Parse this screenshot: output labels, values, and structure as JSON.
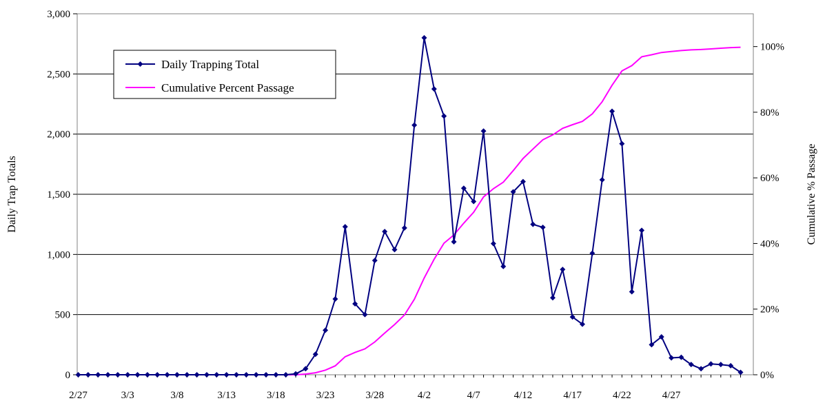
{
  "chart_data": {
    "type": "line",
    "ylabel": "Daily Trap Totals",
    "y2label": "Cumulative % Passage",
    "ylim": [
      0,
      3000
    ],
    "y2lim": [
      0,
      1.1
    ],
    "y_ticks": [
      "0",
      "500",
      "1,000",
      "1,500",
      "2,000",
      "2,500",
      "3,000"
    ],
    "y2_ticks": [
      "0%",
      "20%",
      "40%",
      "60%",
      "80%",
      "100%"
    ],
    "x_ticks": [
      "2/27",
      "3/3",
      "3/8",
      "3/13",
      "3/18",
      "3/23",
      "3/28",
      "4/2",
      "4/7",
      "4/12",
      "4/17",
      "4/22",
      "4/27"
    ],
    "grid": "horizontal",
    "legend_position": "top-left",
    "series": [
      {
        "name": "Daily Trapping Total",
        "axis": "left",
        "color": "#000080",
        "marker": "diamond",
        "values": [
          0,
          0,
          0,
          0,
          0,
          0,
          0,
          0,
          0,
          0,
          0,
          0,
          0,
          0,
          0,
          0,
          0,
          0,
          0,
          0,
          0,
          0,
          8,
          50,
          170,
          370,
          630,
          1230,
          590,
          500,
          950,
          1190,
          1040,
          1220,
          2075,
          2800,
          2375,
          2150,
          1105,
          1550,
          1440,
          2025,
          1090,
          900,
          1520,
          1605,
          1250,
          1225,
          640,
          875,
          480,
          420,
          1010,
          1620,
          2190,
          1920,
          690,
          1200,
          250,
          315,
          140,
          145,
          85,
          50,
          90,
          85,
          75,
          20
        ]
      },
      {
        "name": "Cumulative Percent Passage",
        "axis": "right",
        "color": "#ff00ff",
        "values": [
          0,
          0,
          0,
          0,
          0,
          0,
          0,
          0,
          0,
          0,
          0,
          0,
          0,
          0,
          0,
          0,
          0,
          0,
          0,
          0,
          0,
          0,
          0,
          0.002,
          0.006,
          0.014,
          0.027,
          0.055,
          0.068,
          0.079,
          0.1,
          0.127,
          0.153,
          0.182,
          0.23,
          0.295,
          0.352,
          0.401,
          0.426,
          0.462,
          0.495,
          0.542,
          0.567,
          0.587,
          0.622,
          0.659,
          0.688,
          0.716,
          0.731,
          0.751,
          0.762,
          0.772,
          0.795,
          0.832,
          0.882,
          0.926,
          0.942,
          0.969,
          0.975,
          0.982,
          0.985,
          0.988,
          0.99,
          0.991,
          0.993,
          0.995,
          0.997,
          0.998
        ]
      }
    ]
  }
}
